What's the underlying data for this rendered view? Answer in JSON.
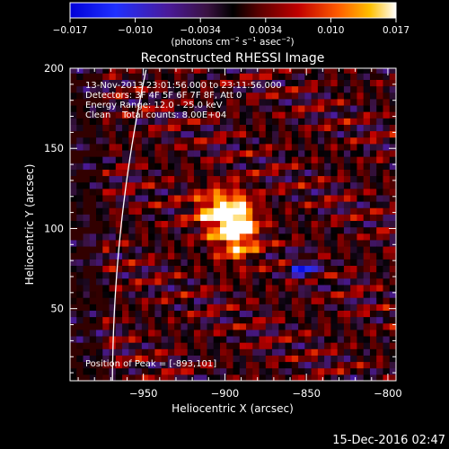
{
  "colorbar": {
    "ticks": [
      "−0.017",
      "−0.010",
      "−0.0034",
      "0.0034",
      "0.010",
      "0.017"
    ],
    "unit_parts": [
      "(photons cm",
      "−2",
      " s",
      "−1",
      " asec",
      "−2",
      ")"
    ]
  },
  "chart_data": {
    "type": "heatmap",
    "title": "Reconstructed RHESSI Image",
    "xlabel": "Heliocentric X (arcsec)",
    "ylabel": "Heliocentric Y (arcsec)",
    "xlim": [
      -995,
      -795
    ],
    "ylim": [
      5,
      200
    ],
    "x_ticks": [
      -950,
      -900,
      -850,
      -800
    ],
    "x_tick_labels": [
      "−950",
      "−900",
      "−850",
      "−800"
    ],
    "y_ticks": [
      50,
      100,
      150,
      200
    ],
    "y_tick_labels": [
      "50",
      "100",
      "150",
      "200"
    ],
    "color_range": [
      -0.017,
      0.017
    ],
    "colormap": "rainbow-blue-to-red-to-white",
    "peak": [
      -893,
      101
    ],
    "info_lines": [
      "13-Nov-2013 23:01:56.000 to 23:11:56.000",
      "Detectors: 3F 4F 5F 6F 7F 8F, Att 0",
      "Energy Range: 12.0 - 25.0 keV",
      "Clean    Total counts: 8.00E+04"
    ],
    "peak_label": "Position of Peak = [-893,101]",
    "limb_color": "#ffffff"
  },
  "footer_date": "15-Dec-2016 02:47"
}
